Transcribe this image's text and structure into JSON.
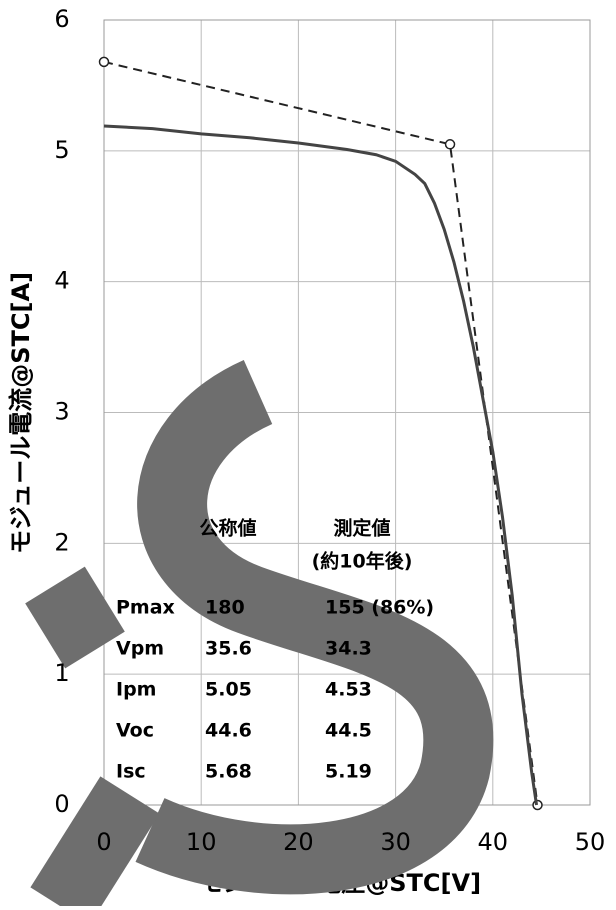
{
  "chart_data": {
    "type": "line",
    "xlabel": "モジュール電圧@STC[V]",
    "ylabel": "モジュール電流@STC[A]",
    "xlim": [
      0,
      50
    ],
    "xticks": [
      0,
      10,
      20,
      30,
      40,
      50
    ],
    "ylim": [
      0,
      6
    ],
    "yticks": [
      0,
      1,
      2,
      3,
      4,
      5,
      6
    ],
    "grid": true,
    "series": [
      {
        "color": "#222222",
        "dash": true,
        "markers": true,
        "x": [
          0,
          35.6,
          44.6
        ],
        "values": [
          5.68,
          5.05,
          0
        ]
      },
      {
        "color": "#444444",
        "dash": false,
        "markers": false,
        "x": [
          0,
          5,
          10,
          15,
          20,
          25,
          28,
          30,
          32,
          33,
          34,
          35,
          36,
          37,
          38,
          39,
          40,
          41,
          42,
          43,
          44,
          44.5
        ],
        "values": [
          5.19,
          5.17,
          5.13,
          5.1,
          5.06,
          5.01,
          4.97,
          4.92,
          4.82,
          4.75,
          4.6,
          4.4,
          4.15,
          3.85,
          3.5,
          3.1,
          2.7,
          2.2,
          1.6,
          0.85,
          0.25,
          0
        ]
      }
    ],
    "table": {
      "headers": [
        "公称値",
        "測定値"
      ],
      "subheader": "(約10年後)",
      "rows": [
        [
          "Pmax",
          "180",
          "155 (86%)"
        ],
        [
          "Vpm",
          "35.6",
          "34.3"
        ],
        [
          "Ipm",
          "5.05",
          "4.53"
        ],
        [
          "Voc",
          "44.6",
          "44.5"
        ],
        [
          "Isc",
          "5.68",
          "5.19"
        ]
      ]
    }
  }
}
